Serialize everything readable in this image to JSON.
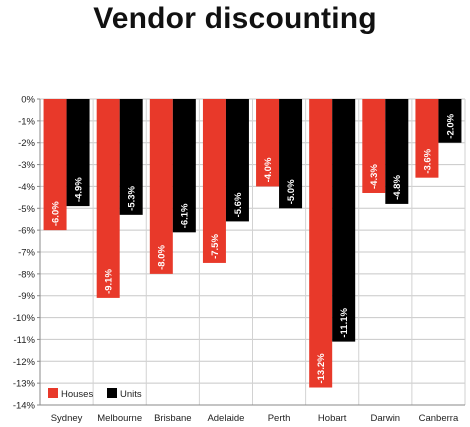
{
  "title": "Vendor discounting",
  "chart_data": {
    "type": "bar",
    "title": "Vendor discounting",
    "categories": [
      "Sydney",
      "Melbourne",
      "Brisbane",
      "Adelaide",
      "Perth",
      "Hobart",
      "Darwin",
      "Canberra"
    ],
    "series": [
      {
        "name": "Houses",
        "color": "#e8392a",
        "values": [
          -6.0,
          -9.1,
          -8.0,
          -7.5,
          -4.0,
          -13.2,
          -4.3,
          -3.6
        ],
        "labels": [
          "-6.0%",
          "-9.1%",
          "-8.0%",
          "-7.5%",
          "-4.0%",
          "-13.2%",
          "-4.3%",
          "-3.6%"
        ]
      },
      {
        "name": "Units",
        "color": "#000000",
        "values": [
          -4.9,
          -5.3,
          -6.1,
          -5.6,
          -5.0,
          -11.1,
          -4.8,
          -2.0
        ],
        "labels": [
          "-4.9%",
          "-5.3%",
          "-6.1%",
          "-5.6%",
          "-5.0%",
          "-11.1%",
          "-4.8%",
          "-2.0%"
        ]
      }
    ],
    "ylim": [
      -14,
      0
    ],
    "yticks": [
      "0%",
      "-1%",
      "-2%",
      "-3%",
      "-4%",
      "-5%",
      "-6%",
      "-7%",
      "-8%",
      "-9%",
      "-10%",
      "-11%",
      "-12%",
      "-13%",
      "-14%"
    ],
    "grid": true,
    "legend_position": "bottom-left",
    "xlabel": "",
    "ylabel": ""
  }
}
